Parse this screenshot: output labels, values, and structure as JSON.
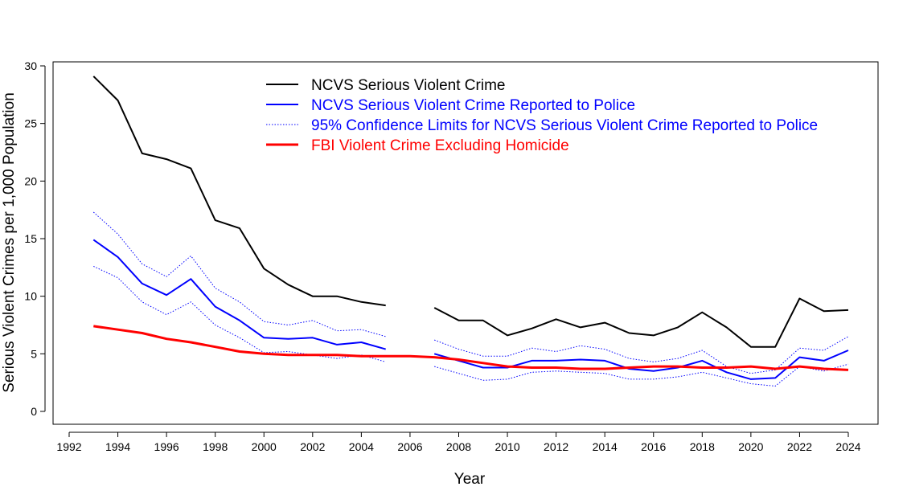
{
  "chart_data": {
    "type": "line",
    "title": "",
    "xlabel": "Year",
    "ylabel": "Serious Violent Crimes per 1,000 Population",
    "xlim": [
      1992,
      2024
    ],
    "ylim": [
      0,
      30
    ],
    "x_ticks": [
      1992,
      1994,
      1996,
      1998,
      2000,
      2002,
      2004,
      2006,
      2008,
      2010,
      2012,
      2014,
      2016,
      2018,
      2020,
      2022,
      2024
    ],
    "x_tick_labels": [
      "1992",
      "1994",
      "1996",
      "1998",
      "2000",
      "2002",
      "2004",
      "2006",
      "2008",
      "2010",
      "2012",
      "2014",
      "2016",
      "2018",
      "2020",
      "2022",
      "2024"
    ],
    "y_ticks": [
      0,
      5,
      10,
      15,
      20,
      25,
      30
    ],
    "y_tick_labels": [
      "0",
      "5",
      "10",
      "15",
      "20",
      "25",
      "30"
    ],
    "grid": false,
    "legend_position": "top",
    "x": [
      1993,
      1994,
      1995,
      1996,
      1997,
      1998,
      1999,
      2000,
      2001,
      2002,
      2003,
      2004,
      2005,
      2006,
      2007,
      2008,
      2009,
      2010,
      2011,
      2012,
      2013,
      2014,
      2015,
      2016,
      2017,
      2018,
      2019,
      2020,
      2021,
      2022,
      2023,
      2024
    ],
    "series": [
      {
        "name": "NCVS Serious Violent Crime",
        "color": "#000000",
        "style": "solid",
        "values": [
          29.1,
          27.0,
          22.4,
          21.9,
          21.1,
          16.6,
          15.9,
          12.4,
          11.0,
          10.0,
          10.0,
          9.5,
          9.2,
          null,
          9.0,
          7.9,
          7.9,
          6.6,
          7.2,
          8.0,
          7.3,
          7.7,
          6.8,
          6.6,
          7.3,
          8.6,
          7.3,
          5.6,
          5.6,
          9.8,
          8.7,
          8.8
        ]
      },
      {
        "name": "NCVS Serious Violent Crime Reported to Police",
        "color": "#0000ff",
        "style": "solid",
        "values": [
          14.9,
          13.4,
          11.1,
          10.1,
          11.5,
          9.1,
          7.9,
          6.4,
          6.3,
          6.4,
          5.8,
          6.0,
          5.4,
          null,
          5.0,
          4.4,
          3.8,
          3.8,
          4.4,
          4.4,
          4.5,
          4.4,
          3.7,
          3.5,
          3.8,
          4.4,
          3.4,
          2.8,
          2.9,
          4.7,
          4.4,
          5.3
        ]
      },
      {
        "name": "95% Confidence Limits for NCVS Serious Violent Crime Reported to Police",
        "color": "#0000ff",
        "style": "dotted",
        "values": [
          17.3,
          15.4,
          12.8,
          11.7,
          13.5,
          10.7,
          9.5,
          7.8,
          7.5,
          7.9,
          7.0,
          7.1,
          6.5,
          null,
          6.2,
          5.4,
          4.8,
          4.8,
          5.5,
          5.2,
          5.7,
          5.4,
          4.6,
          4.3,
          4.6,
          5.3,
          3.9,
          3.3,
          3.6,
          5.5,
          5.3,
          6.5
        ]
      },
      {
        "name": "95% Confidence Limits (lower)",
        "color": "#0000ff",
        "style": "dotted",
        "legend": false,
        "values": [
          12.6,
          11.6,
          9.5,
          8.4,
          9.5,
          7.5,
          6.4,
          5.1,
          5.2,
          4.9,
          4.6,
          4.9,
          4.3,
          null,
          3.9,
          3.3,
          2.7,
          2.8,
          3.4,
          3.5,
          3.4,
          3.3,
          2.8,
          2.8,
          3.0,
          3.4,
          2.9,
          2.4,
          2.2,
          3.9,
          3.5,
          4.1
        ]
      },
      {
        "name": "FBI Violent Crime Excluding Homicide",
        "color": "#ff0000",
        "style": "solid-thick",
        "values": [
          7.4,
          7.1,
          6.8,
          6.3,
          6.0,
          5.6,
          5.2,
          5.0,
          4.9,
          4.9,
          4.9,
          4.8,
          4.8,
          4.8,
          4.7,
          4.5,
          4.2,
          3.9,
          3.8,
          3.8,
          3.7,
          3.7,
          3.8,
          3.9,
          3.9,
          3.8,
          3.8,
          3.9,
          3.7,
          3.9,
          3.7,
          3.6
        ]
      }
    ]
  }
}
